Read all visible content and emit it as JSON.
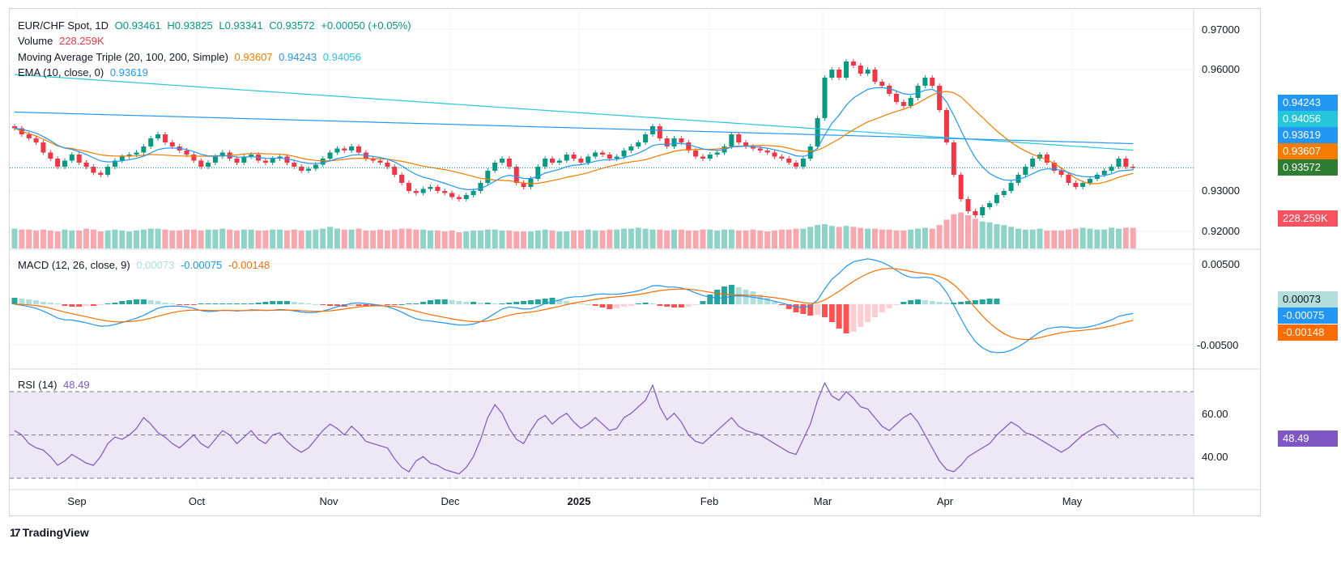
{
  "header": {
    "symbol": "EUR/CHF Spot, 1D",
    "open": "O0.93461",
    "high": "H0.93825",
    "low": "L0.93341",
    "close": "C0.93572",
    "change": "+0.00050 (+0.05%)"
  },
  "legend": {
    "volume_label": "Volume",
    "volume_value": "228.259K",
    "ma_label": "Moving Average Triple (20, 100, 200, Simple)",
    "ma20": "0.93607",
    "ma100": "0.94243",
    "ma200": "0.94056",
    "ema_label": "EMA (10, close, 0)",
    "ema_value": "0.93619",
    "macd_label": "MACD (12, 26, close, 9)",
    "macd_hist": "0.00073",
    "macd_line": "-0.00075",
    "macd_signal": "-0.00148",
    "rsi_label": "RSI (14)",
    "rsi_value": "48.49"
  },
  "price_axis": [
    "0.97000",
    "0.96000",
    "0.93000",
    "0.92000"
  ],
  "price_tags": [
    {
      "text": "0.94243",
      "color": "#2196f3"
    },
    {
      "text": "0.94056",
      "color": "#26c6da"
    },
    {
      "text": "0.93619",
      "color": "#2196f3"
    },
    {
      "text": "0.93607",
      "color": "#f57c00"
    },
    {
      "text": "0.93572",
      "color": "#2e7d32"
    },
    {
      "text": "228.259K",
      "color": "#f7525f"
    }
  ],
  "macd_axis": [
    "0.00500",
    "-0.00500"
  ],
  "macd_tags": [
    {
      "text": "0.00073",
      "color": "#b2dfdb",
      "text_color": "#131722"
    },
    {
      "text": "-0.00075",
      "color": "#2196f3",
      "text_color": "#ffffff"
    },
    {
      "text": "-0.00148",
      "color": "#ff6d00",
      "text_color": "#ffffff"
    }
  ],
  "rsi_axis": [
    "60.00",
    "40.00"
  ],
  "rsi_tag": {
    "text": "48.49",
    "color": "#7e57c2"
  },
  "x_labels": [
    {
      "text": "Sep",
      "bold": false
    },
    {
      "text": "Oct",
      "bold": false
    },
    {
      "text": "Nov",
      "bold": false
    },
    {
      "text": "Dec",
      "bold": false
    },
    {
      "text": "2025",
      "bold": true
    },
    {
      "text": "Feb",
      "bold": false
    },
    {
      "text": "Mar",
      "bold": false
    },
    {
      "text": "Apr",
      "bold": false
    },
    {
      "text": "May",
      "bold": false
    }
  ],
  "brand": "TradingView",
  "colors": {
    "up": "#089981",
    "down": "#f23645",
    "vol_up": "#8fd3c6",
    "vol_down": "#f7a7ae",
    "ma20": "#f57c00",
    "ma100": "#2196f3",
    "ma200": "#26c6da",
    "ema": "#2196f3",
    "macd": "#2196f3",
    "signal": "#ff6d00",
    "rsi": "#7e57c2",
    "rsi_band": "#ede7f6"
  },
  "chart_data": {
    "type": "candlestick",
    "title": "EUR/CHF Spot, 1D",
    "price_ylim": [
      0.918,
      0.9715
    ],
    "last_close": 0.93572,
    "rsi_levels": [
      70,
      50,
      30
    ],
    "close_series": [
      0.9455,
      0.944,
      0.943,
      0.942,
      0.9395,
      0.938,
      0.936,
      0.9375,
      0.939,
      0.937,
      0.936,
      0.9345,
      0.934,
      0.936,
      0.9375,
      0.9385,
      0.939,
      0.9395,
      0.941,
      0.943,
      0.944,
      0.942,
      0.941,
      0.94,
      0.939,
      0.9375,
      0.936,
      0.937,
      0.9385,
      0.9395,
      0.938,
      0.937,
      0.9385,
      0.939,
      0.9375,
      0.937,
      0.938,
      0.9385,
      0.937,
      0.936,
      0.935,
      0.9355,
      0.9365,
      0.938,
      0.9395,
      0.9405,
      0.94,
      0.941,
      0.9395,
      0.938,
      0.9375,
      0.937,
      0.936,
      0.934,
      0.932,
      0.93,
      0.9295,
      0.9305,
      0.931,
      0.93,
      0.9295,
      0.9285,
      0.928,
      0.929,
      0.93,
      0.932,
      0.935,
      0.937,
      0.938,
      0.936,
      0.932,
      0.931,
      0.933,
      0.936,
      0.938,
      0.937,
      0.9375,
      0.939,
      0.938,
      0.937,
      0.9385,
      0.9395,
      0.939,
      0.938,
      0.9385,
      0.94,
      0.941,
      0.942,
      0.944,
      0.946,
      0.943,
      0.941,
      0.943,
      0.942,
      0.94,
      0.9385,
      0.938,
      0.939,
      0.9395,
      0.941,
      0.944,
      0.942,
      0.941,
      0.9405,
      0.94,
      0.9395,
      0.9385,
      0.938,
      0.937,
      0.936,
      0.938,
      0.941,
      0.948,
      0.958,
      0.96,
      0.958,
      0.962,
      0.961,
      0.959,
      0.96,
      0.957,
      0.956,
      0.954,
      0.952,
      0.951,
      0.953,
      0.956,
      0.958,
      0.956,
      0.95,
      0.942,
      0.934,
      0.928,
      0.925,
      0.924,
      0.926,
      0.927,
      0.929,
      0.93,
      0.932,
      0.934,
      0.936,
      0.938,
      0.939,
      0.937,
      0.935,
      0.934,
      0.932,
      0.931,
      0.932,
      0.933,
      0.934,
      0.935,
      0.936,
      0.938,
      0.936,
      0.9357
    ],
    "volume_series": [
      22,
      21,
      21,
      20,
      21,
      20,
      19,
      21,
      20,
      20,
      22,
      21,
      19,
      20,
      21,
      20,
      19,
      20,
      21,
      22,
      22,
      21,
      20,
      20,
      21,
      21,
      20,
      21,
      21,
      22,
      21,
      20,
      21,
      21,
      20,
      20,
      21,
      21,
      20,
      21,
      20,
      20,
      21,
      22,
      24,
      22,
      21,
      21,
      22,
      20,
      20,
      21,
      20,
      21,
      22,
      22,
      21,
      21,
      20,
      20,
      19,
      20,
      18,
      19,
      20,
      20,
      21,
      21,
      20,
      20,
      19,
      19,
      19,
      20,
      21,
      20,
      19,
      19,
      20,
      20,
      21,
      20,
      20,
      21,
      21,
      22,
      22,
      23,
      22,
      21,
      21,
      20,
      21,
      21,
      20,
      20,
      21,
      21,
      20,
      21,
      21,
      20,
      20,
      21,
      20,
      19,
      20,
      21,
      21,
      22,
      22,
      24,
      26,
      27,
      25,
      24,
      25,
      24,
      23,
      22,
      22,
      21,
      21,
      20,
      20,
      21,
      22,
      23,
      22,
      26,
      32,
      38,
      40,
      37,
      33,
      30,
      29,
      27,
      26,
      24,
      22,
      21,
      21,
      22,
      20,
      20,
      20,
      21,
      22,
      23,
      22,
      21,
      21,
      23,
      22,
      23,
      23
    ],
    "macd_hist": [
      0.0008,
      0.0007,
      0.0006,
      0.0005,
      0.0003,
      0.0002,
      0.0001,
      -0.0002,
      -0.0003,
      -0.0003,
      -0.0002,
      -0.0002,
      -0.0001,
      0.0001,
      0.0002,
      0.0004,
      0.0005,
      0.0006,
      0.0006,
      0.0005,
      0.0004,
      0.0002,
      0.0001,
      -0.0001,
      -0.0001,
      -0.0001,
      0.0001,
      0.0001,
      0.0001,
      0.0001,
      0.0001,
      0.0001,
      0.0001,
      0.0001,
      0.0002,
      0.0003,
      0.0004,
      0.0004,
      0.0004,
      0.0003,
      0.0002,
      0.0001,
      0,
      -0.0001,
      -0.0002,
      -0.0002,
      -0.0003,
      -0.0002,
      -0.0002,
      -0.0002,
      -0.0002,
      -0.0001,
      -0.0001,
      -0.0001,
      0,
      0.0001,
      0.0001,
      0.0003,
      0.0005,
      0.0006,
      0.0006,
      0.0005,
      0.0004,
      0.0003,
      0.0003,
      0.0002,
      0.0002,
      0.0001,
      0.0001,
      0.0002,
      0.0003,
      0.0004,
      0.0005,
      0.0006,
      0.0007,
      0.0008,
      0.0006,
      0.0004,
      0.0002,
      0.0001,
      0,
      -0.0002,
      -0.0004,
      -0.0006,
      -0.0005,
      -0.0003,
      -0.0002,
      0.0001,
      0.0002,
      0.0001,
      -0.0002,
      -0.0003,
      -0.0004,
      -0.0004,
      -0.0003,
      -0.0001,
      0.0004,
      0.0012,
      0.0018,
      0.0022,
      0.0024,
      0.0021,
      0.0018,
      0.0016,
      0.0012,
      0.0008,
      0.0003,
      -0.0001,
      -0.0006,
      -0.001,
      -0.0012,
      -0.0014,
      -0.0013,
      -0.0016,
      -0.0022,
      -0.003,
      -0.0036,
      -0.0034,
      -0.0028,
      -0.0022,
      -0.0016,
      -0.001,
      -0.0005,
      -0.0001,
      0.0003,
      0.0005,
      0.0006,
      0.0005,
      0.0004,
      0.0003,
      0.0002,
      0.0002,
      0.0003,
      0.0004,
      0.0005,
      0.0006,
      0.0007,
      0.0007
    ],
    "rsi_series": [
      52,
      50,
      46,
      44,
      43,
      40,
      36,
      38,
      41,
      39,
      37,
      36,
      40,
      46,
      49,
      48,
      50,
      53,
      58,
      55,
      51,
      49,
      46,
      44,
      47,
      50,
      46,
      44,
      48,
      52,
      50,
      46,
      49,
      52,
      48,
      46,
      50,
      51,
      47,
      44,
      42,
      44,
      48,
      52,
      55,
      53,
      50,
      54,
      51,
      47,
      46,
      45,
      44,
      39,
      35,
      33,
      38,
      40,
      37,
      36,
      34,
      33,
      32,
      35,
      40,
      48,
      58,
      64,
      60,
      53,
      48,
      46,
      52,
      57,
      59,
      55,
      58,
      60,
      56,
      53,
      55,
      58,
      55,
      52,
      53,
      58,
      60,
      63,
      66,
      73,
      63,
      57,
      60,
      56,
      50,
      47,
      46,
      49,
      52,
      55,
      58,
      54,
      52,
      51,
      50,
      48,
      46,
      44,
      42,
      41,
      48,
      55,
      66,
      74,
      68,
      66,
      70,
      67,
      63,
      62,
      58,
      54,
      52,
      55,
      58,
      60,
      56,
      50,
      44,
      38,
      34,
      33,
      36,
      40,
      42,
      44,
      46,
      50,
      53,
      56,
      54,
      51,
      50,
      48,
      46,
      44,
      42,
      44,
      47,
      50,
      52,
      54,
      55,
      52,
      48.5
    ],
    "x_labels": [
      "Sep",
      "Oct",
      "Nov",
      "Dec",
      "2025",
      "Feb",
      "Mar",
      "Apr",
      "May"
    ]
  }
}
